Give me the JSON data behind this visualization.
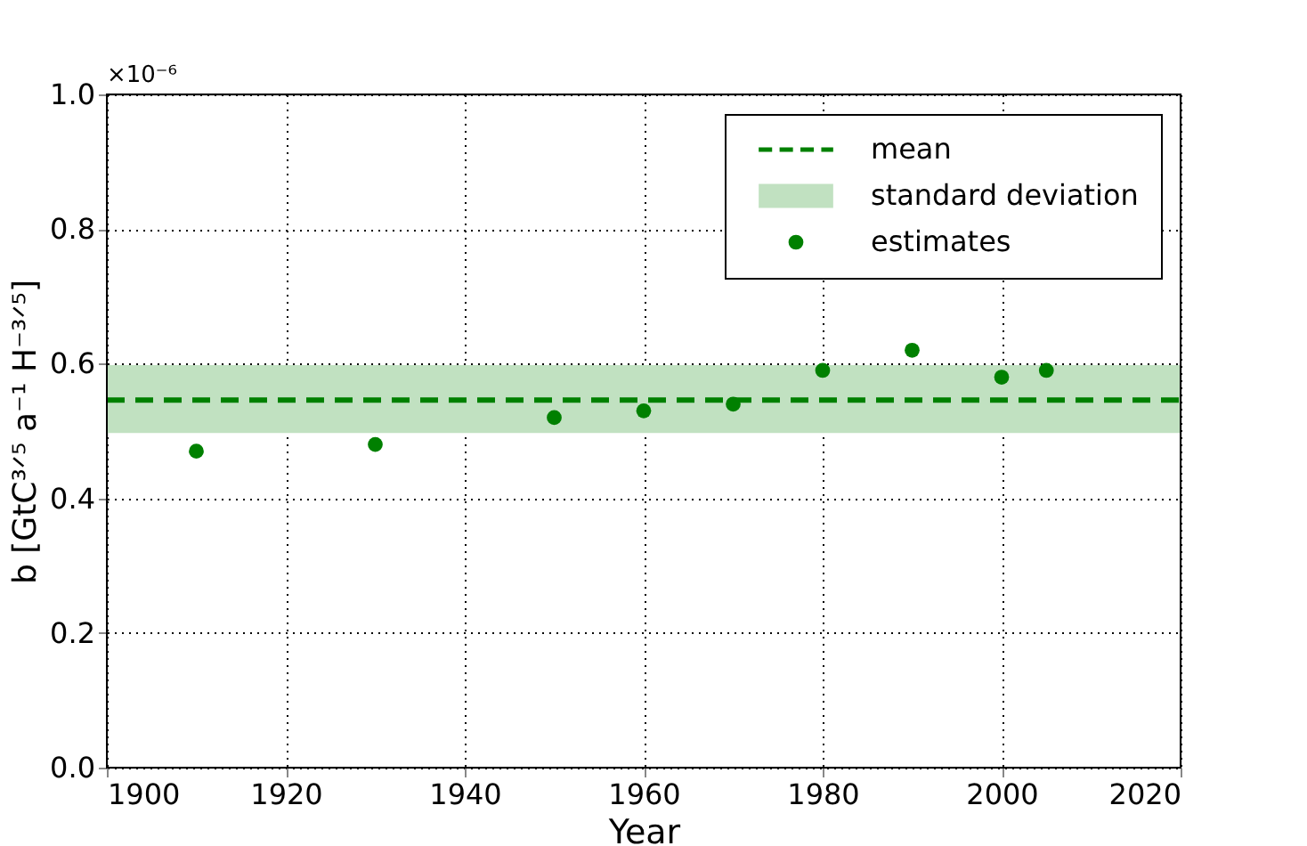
{
  "chart_data": {
    "type": "scatter",
    "xlabel": "Year",
    "ylabel": "b [GtC³ᐟ⁵ a⁻¹ H⁻³ᐟ⁵]",
    "x": [
      1910,
      1930,
      1950,
      1960,
      1970,
      1980,
      1990,
      2000,
      2005
    ],
    "series": [
      {
        "name": "estimates",
        "color": "#008000",
        "values": [
          0.47,
          0.48,
          0.52,
          0.53,
          0.54,
          0.59,
          0.62,
          0.58,
          0.59
        ]
      }
    ],
    "ref_lines": [
      {
        "axis": "y",
        "value": 0.546,
        "label": "mean",
        "color": "#008000",
        "line_style": "dashed"
      }
    ],
    "bands": [
      {
        "axis": "y",
        "from": 0.497,
        "to": 0.598,
        "label": "standard deviation",
        "color": "#c1e1c1"
      }
    ],
    "annotations": [
      "×10⁻⁶"
    ],
    "xlim": [
      1900,
      2020
    ],
    "xticks": [
      1900,
      1920,
      1940,
      1960,
      1980,
      2000,
      2020
    ],
    "ylim": [
      0.0,
      1.0
    ],
    "yticks": [
      {
        "value": 0,
        "label": "0.0"
      },
      0.2,
      0.4,
      0.6,
      0.8,
      {
        "value": 1,
        "label": "1.0"
      }
    ],
    "grid": true,
    "legend": "top right",
    "marker": "circle"
  }
}
